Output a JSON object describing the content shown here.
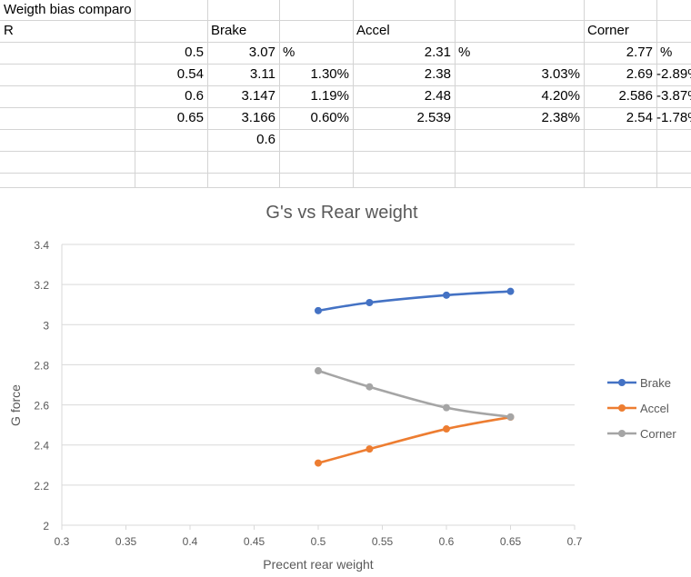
{
  "sheet": {
    "cells": [
      {
        "row": 0,
        "col": 0,
        "align": "l",
        "text": "Weigth bias comparo"
      },
      {
        "row": 1,
        "col": 0,
        "align": "l",
        "text": "R"
      },
      {
        "row": 1,
        "col": 2,
        "align": "l",
        "text": "Brake"
      },
      {
        "row": 1,
        "col": 4,
        "align": "l",
        "text": "Accel"
      },
      {
        "row": 1,
        "col": 6,
        "align": "l",
        "text": "Corner"
      },
      {
        "row": 2,
        "col": 1,
        "align": "r",
        "text": "0.5"
      },
      {
        "row": 2,
        "col": 2,
        "align": "r",
        "text": "3.07"
      },
      {
        "row": 2,
        "col": 3,
        "align": "l",
        "text": "%"
      },
      {
        "row": 2,
        "col": 4,
        "align": "r",
        "text": "2.31"
      },
      {
        "row": 2,
        "col": 5,
        "align": "l",
        "text": "%"
      },
      {
        "row": 2,
        "col": 6,
        "align": "r",
        "text": "2.77"
      },
      {
        "row": 2,
        "col": 7,
        "align": "l",
        "text": "%"
      },
      {
        "row": 3,
        "col": 1,
        "align": "r",
        "text": "0.54"
      },
      {
        "row": 3,
        "col": 2,
        "align": "r",
        "text": "3.11"
      },
      {
        "row": 3,
        "col": 3,
        "align": "r",
        "text": "1.30%"
      },
      {
        "row": 3,
        "col": 4,
        "align": "r",
        "text": "2.38"
      },
      {
        "row": 3,
        "col": 5,
        "align": "r",
        "text": "3.03%"
      },
      {
        "row": 3,
        "col": 6,
        "align": "r",
        "text": "2.69"
      },
      {
        "row": 3,
        "col": 7,
        "align": "r",
        "text": "-2.89%"
      },
      {
        "row": 4,
        "col": 1,
        "align": "r",
        "text": "0.6"
      },
      {
        "row": 4,
        "col": 2,
        "align": "r",
        "text": "3.147"
      },
      {
        "row": 4,
        "col": 3,
        "align": "r",
        "text": "1.19%"
      },
      {
        "row": 4,
        "col": 4,
        "align": "r",
        "text": "2.48"
      },
      {
        "row": 4,
        "col": 5,
        "align": "r",
        "text": "4.20%"
      },
      {
        "row": 4,
        "col": 6,
        "align": "r",
        "text": "2.586"
      },
      {
        "row": 4,
        "col": 7,
        "align": "r",
        "text": "-3.87%"
      },
      {
        "row": 5,
        "col": 1,
        "align": "r",
        "text": "0.65"
      },
      {
        "row": 5,
        "col": 2,
        "align": "r",
        "text": "3.166"
      },
      {
        "row": 5,
        "col": 3,
        "align": "r",
        "text": "0.60%"
      },
      {
        "row": 5,
        "col": 4,
        "align": "r",
        "text": "2.539"
      },
      {
        "row": 5,
        "col": 5,
        "align": "r",
        "text": "2.38%"
      },
      {
        "row": 5,
        "col": 6,
        "align": "r",
        "text": "2.54"
      },
      {
        "row": 5,
        "col": 7,
        "align": "r",
        "text": "-1.78%"
      },
      {
        "row": 6,
        "col": 2,
        "align": "r",
        "text": "0.6"
      }
    ]
  },
  "chart_data": {
    "type": "line",
    "title": "G's vs Rear weight",
    "xlabel": "Precent rear weight",
    "ylabel": "G force",
    "xlim": [
      0.3,
      0.7
    ],
    "ylim": [
      2,
      3.4
    ],
    "xticks": [
      "0.3",
      "0.35",
      "0.4",
      "0.45",
      "0.5",
      "0.55",
      "0.6",
      "0.65",
      "0.7"
    ],
    "yticks": [
      "2",
      "2.2",
      "2.4",
      "2.6",
      "2.8",
      "3",
      "3.2",
      "3.4"
    ],
    "grid": "horizontal",
    "legend_position": "right",
    "series": [
      {
        "name": "Brake",
        "color": "#4472c4",
        "x": [
          0.5,
          0.54,
          0.6,
          0.65
        ],
        "y": [
          3.07,
          3.11,
          3.147,
          3.166
        ]
      },
      {
        "name": "Accel",
        "color": "#ed7d31",
        "x": [
          0.5,
          0.54,
          0.6,
          0.65
        ],
        "y": [
          2.31,
          2.38,
          2.48,
          2.539
        ]
      },
      {
        "name": "Corner",
        "color": "#a5a5a5",
        "x": [
          0.5,
          0.54,
          0.6,
          0.65
        ],
        "y": [
          2.77,
          2.69,
          2.586,
          2.54
        ]
      }
    ]
  }
}
